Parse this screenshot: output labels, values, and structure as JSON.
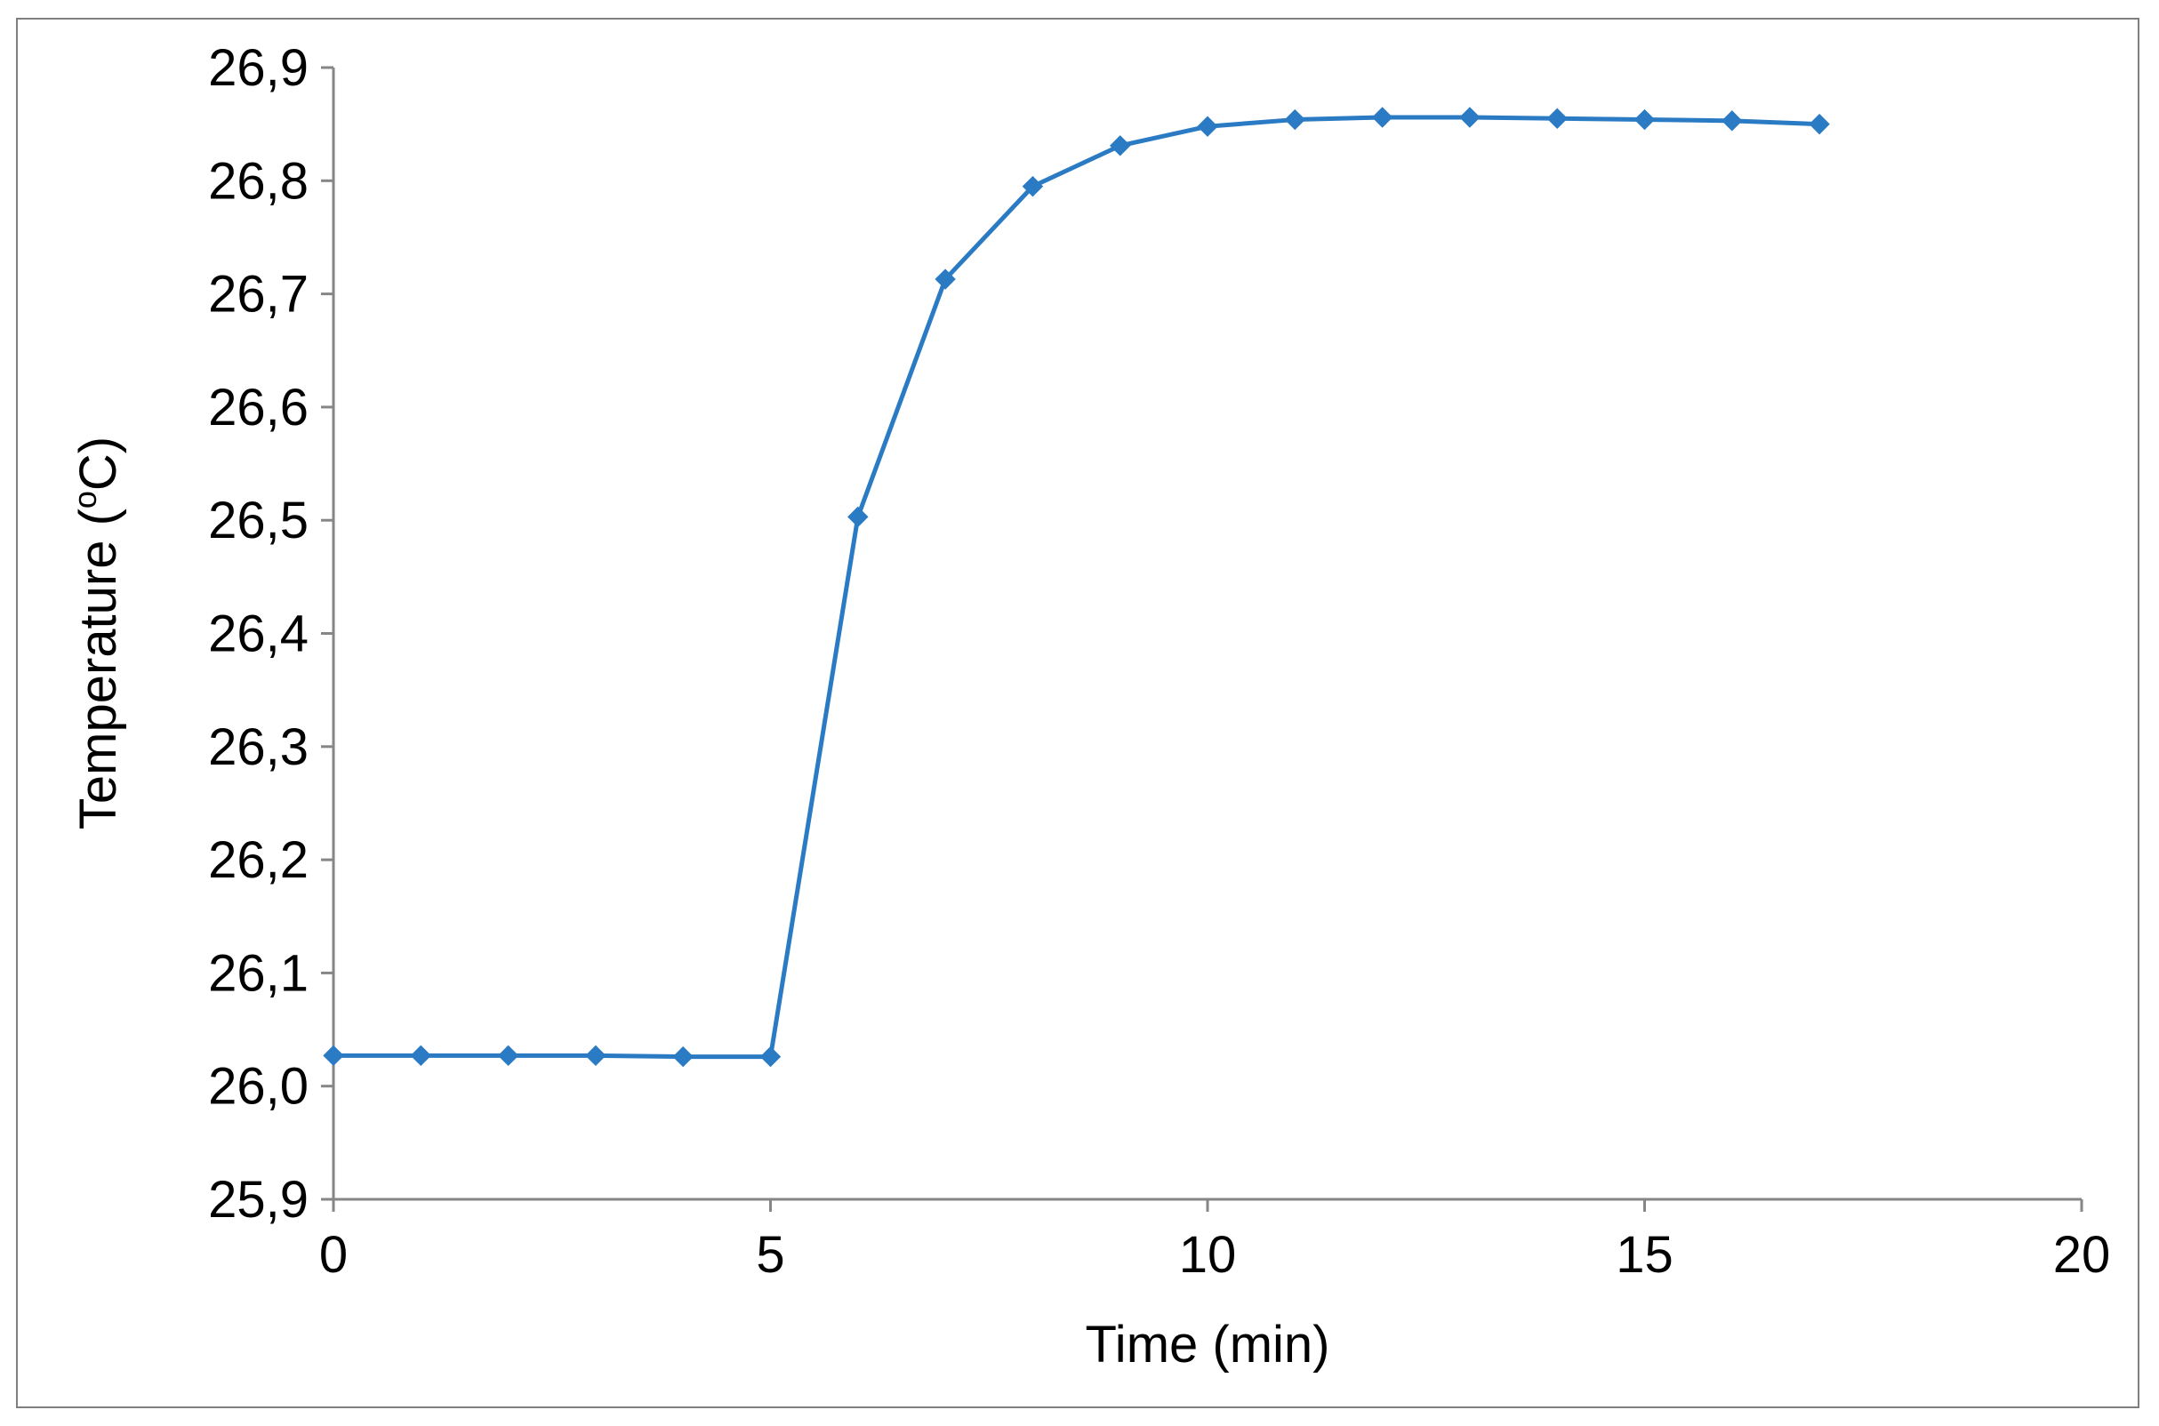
{
  "chart_data": {
    "type": "line",
    "title": "",
    "xlabel": "Time (min)",
    "ylabel": "Temperature (",
    "ylabel_sup": "o",
    "ylabel_suffix": "C)",
    "xlim": [
      0,
      20
    ],
    "ylim": [
      25.9,
      26.9
    ],
    "xticks": [
      "0",
      "5",
      "10",
      "15",
      "20"
    ],
    "yticks": [
      "25,9",
      "26,0",
      "26,1",
      "26,2",
      "26,3",
      "26,4",
      "26,5",
      "26,6",
      "26,7",
      "26,8",
      "26,9"
    ],
    "grid": false,
    "legend": "none",
    "series": [
      {
        "color": "#2a7bc4",
        "marker": "diamond",
        "x": [
          0,
          1,
          2,
          3,
          4,
          5,
          6,
          7,
          8,
          9,
          10,
          11,
          12,
          13,
          14,
          15,
          16,
          17
        ],
        "y": [
          26.027,
          26.027,
          26.027,
          26.027,
          26.026,
          26.026,
          26.503,
          26.713,
          26.795,
          26.831,
          26.848,
          26.854,
          26.856,
          26.856,
          26.855,
          26.854,
          26.853,
          26.85
        ]
      }
    ]
  }
}
